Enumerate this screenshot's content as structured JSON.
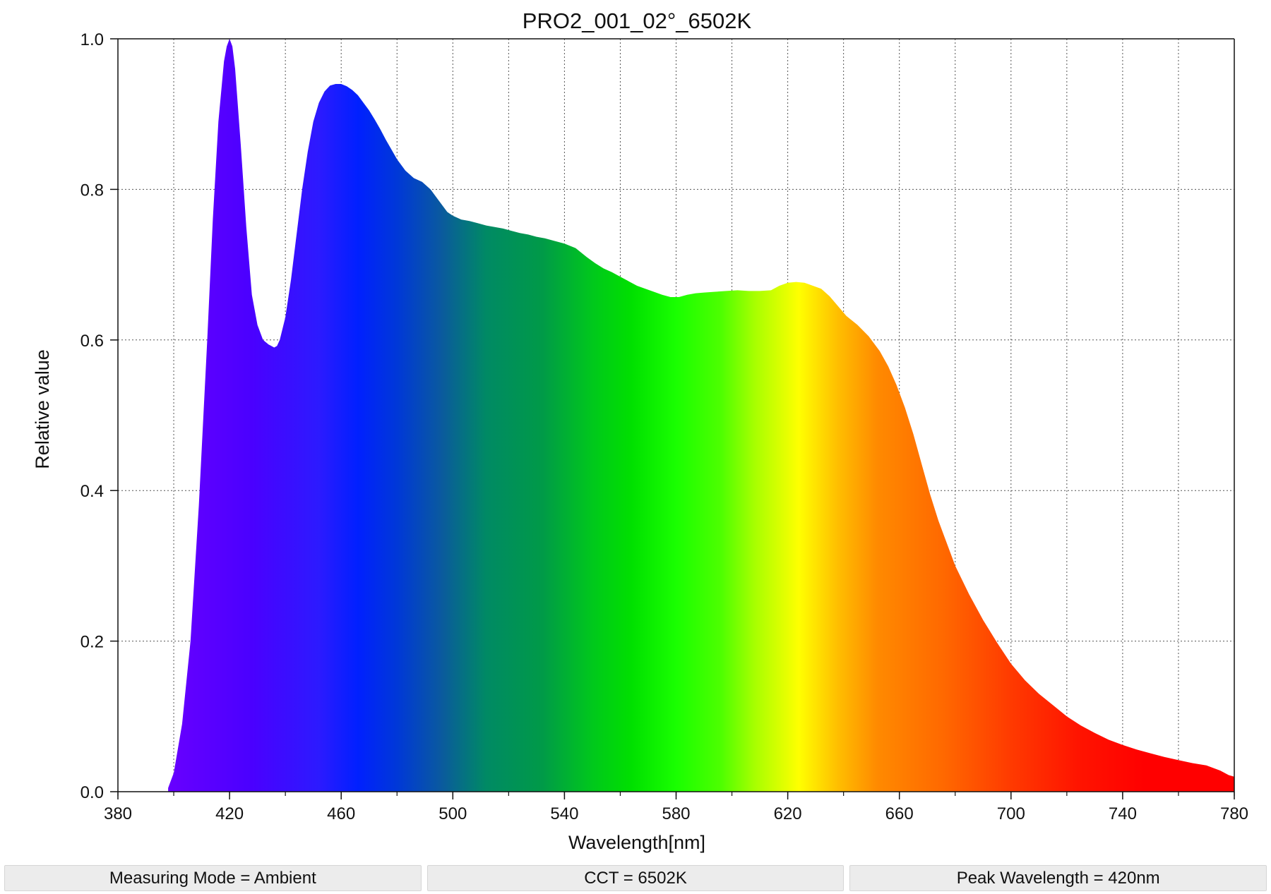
{
  "chart_data": {
    "type": "area",
    "title": "PRO2_001_02°_6502K",
    "xlabel": "Wavelength[nm]",
    "ylabel": "Relative value",
    "xlim": [
      380,
      780
    ],
    "ylim": [
      0,
      1.0
    ],
    "x_ticks": [
      "380",
      "420",
      "460",
      "500",
      "540",
      "580",
      "620",
      "660",
      "700",
      "740",
      "780"
    ],
    "y_ticks": [
      "0.0",
      "0.2",
      "0.4",
      "0.6",
      "0.8",
      "1.0"
    ],
    "grid": true,
    "fill": "visible-spectrum gradient",
    "series": [
      {
        "x": [
          398,
          400,
          403,
          406,
          409,
          412,
          414,
          416,
          418,
          419,
          420,
          421,
          422,
          424,
          426,
          428,
          430,
          432,
          434,
          436,
          437,
          438,
          440,
          442,
          444,
          446,
          448,
          450,
          452,
          454,
          456,
          458,
          460,
          462,
          464,
          466,
          468,
          470,
          472,
          474,
          476,
          478,
          480,
          483,
          486,
          489,
          492,
          495,
          498,
          500,
          503,
          506,
          509,
          512,
          515,
          518,
          521,
          524,
          527,
          530,
          533,
          536,
          540,
          544,
          548,
          551,
          554,
          557,
          560,
          563,
          566,
          569,
          572,
          575,
          578,
          581,
          584,
          587,
          590,
          594,
          598,
          602,
          606,
          610,
          614,
          617,
          620,
          623,
          626,
          629,
          632,
          635,
          638,
          641,
          645,
          649,
          653,
          656,
          659,
          662,
          665,
          668,
          671,
          674,
          677,
          680,
          685,
          690,
          695,
          700,
          705,
          710,
          715,
          720,
          725,
          730,
          735,
          740,
          745,
          750,
          755,
          760,
          765,
          770,
          775,
          778,
          780
        ],
        "y": [
          0.005,
          0.025,
          0.09,
          0.2,
          0.38,
          0.6,
          0.76,
          0.89,
          0.97,
          0.99,
          1.0,
          0.99,
          0.96,
          0.86,
          0.75,
          0.66,
          0.62,
          0.6,
          0.594,
          0.59,
          0.592,
          0.6,
          0.63,
          0.68,
          0.74,
          0.8,
          0.85,
          0.89,
          0.915,
          0.93,
          0.938,
          0.94,
          0.94,
          0.937,
          0.932,
          0.925,
          0.915,
          0.905,
          0.893,
          0.88,
          0.866,
          0.853,
          0.84,
          0.825,
          0.815,
          0.81,
          0.8,
          0.785,
          0.77,
          0.765,
          0.76,
          0.758,
          0.755,
          0.752,
          0.75,
          0.748,
          0.745,
          0.742,
          0.74,
          0.737,
          0.735,
          0.732,
          0.728,
          0.722,
          0.71,
          0.702,
          0.695,
          0.69,
          0.684,
          0.678,
          0.672,
          0.668,
          0.664,
          0.66,
          0.657,
          0.657,
          0.66,
          0.662,
          0.663,
          0.664,
          0.665,
          0.666,
          0.665,
          0.665,
          0.666,
          0.672,
          0.676,
          0.677,
          0.676,
          0.672,
          0.668,
          0.658,
          0.645,
          0.632,
          0.62,
          0.605,
          0.585,
          0.565,
          0.54,
          0.51,
          0.475,
          0.435,
          0.395,
          0.36,
          0.33,
          0.3,
          0.262,
          0.228,
          0.198,
          0.17,
          0.148,
          0.13,
          0.115,
          0.1,
          0.088,
          0.078,
          0.069,
          0.062,
          0.056,
          0.051,
          0.046,
          0.042,
          0.038,
          0.035,
          0.028,
          0.022,
          0.02
        ]
      }
    ]
  },
  "status": {
    "measuring_mode": "Measuring Mode = Ambient",
    "cct": "CCT = 6502K",
    "peak_wavelength": "Peak Wavelength = 420nm"
  }
}
